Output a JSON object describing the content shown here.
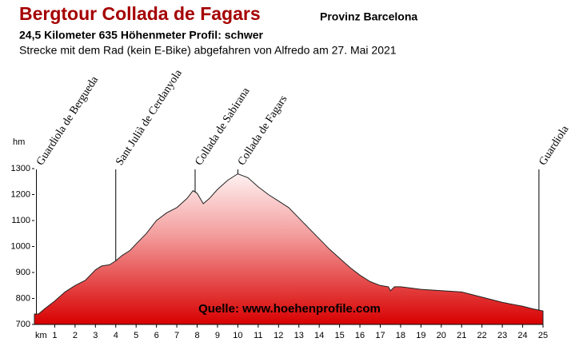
{
  "chart_data": {
    "type": "area",
    "title": "Bergtour Collada de Fagars",
    "region": "Provinz Barcelona",
    "subtitle": "24,5 Kilometer  635 Höhenmeter  Profil: schwer",
    "description": "Strecke mit dem Rad (kein E-Bike) abgefahren von Alfredo am 27. Mai 2021",
    "y_label": "hm",
    "x_label": "km",
    "annotation": "Quelle: www.hoehenprofile.com",
    "color": "#d80000",
    "x": [
      0,
      0.2,
      0.5,
      1,
      1.5,
      2,
      2.5,
      3,
      3.3,
      3.7,
      4,
      4.3,
      4.7,
      5,
      5.5,
      6,
      6.5,
      7,
      7.5,
      7.8,
      8,
      8.3,
      8.6,
      9,
      9.5,
      10,
      10.5,
      11,
      11.5,
      12,
      12.5,
      13,
      13.5,
      14,
      14.5,
      15,
      15.5,
      16,
      16.5,
      17,
      17.4,
      17.5,
      17.7,
      18,
      19,
      20,
      21,
      22,
      23,
      24,
      24.5,
      25
    ],
    "values": [
      740,
      740,
      760,
      790,
      825,
      850,
      870,
      910,
      925,
      930,
      945,
      965,
      985,
      1010,
      1050,
      1100,
      1130,
      1150,
      1185,
      1215,
      1205,
      1165,
      1185,
      1220,
      1255,
      1280,
      1265,
      1230,
      1200,
      1175,
      1150,
      1110,
      1070,
      1030,
      990,
      955,
      920,
      890,
      865,
      850,
      845,
      830,
      845,
      845,
      835,
      830,
      825,
      805,
      785,
      770,
      760,
      752
    ],
    "waypoints": [
      {
        "label": "Guardiola de Bergueda",
        "km": 0.1
      },
      {
        "label": "Sant Julià de Cerdanyola",
        "km": 4
      },
      {
        "label": "Collada de Sabirana",
        "km": 7.9
      },
      {
        "label": "Collada de Fagars",
        "km": 10
      },
      {
        "label": "Guardiola",
        "km": 24.8
      }
    ],
    "xlim": [
      0,
      25
    ],
    "xticks": [
      1,
      2,
      3,
      4,
      5,
      6,
      7,
      8,
      9,
      10,
      11,
      12,
      13,
      14,
      15,
      16,
      17,
      18,
      19,
      20,
      21,
      22,
      23,
      24,
      25
    ],
    "ylim": [
      700,
      1300
    ],
    "yticks": [
      700,
      800,
      900,
      1000,
      1100,
      1200,
      1300
    ]
  }
}
